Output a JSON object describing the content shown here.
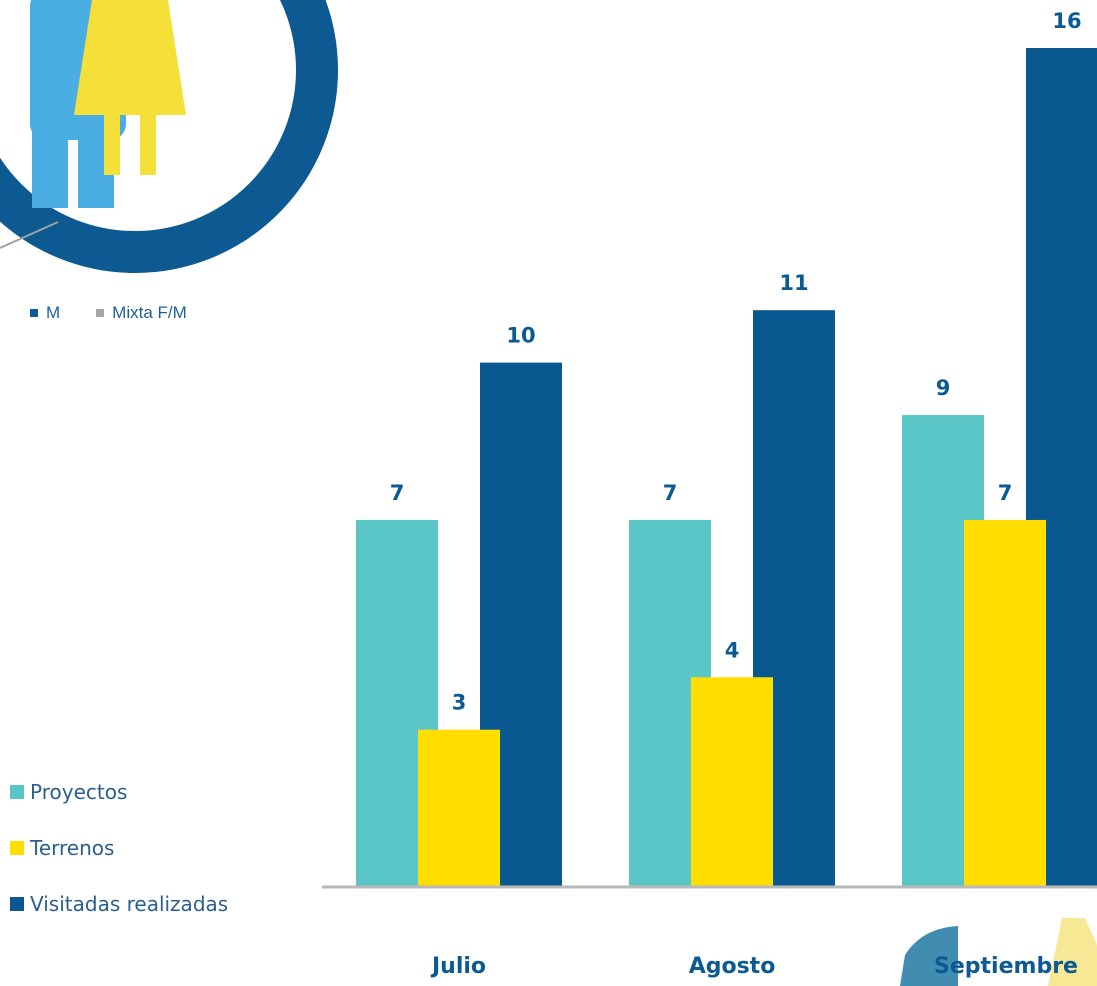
{
  "top_legend": [
    {
      "label": "M",
      "color": "#0c5a91"
    },
    {
      "label": "Mixta F/M",
      "color": "#a6a6a6"
    }
  ],
  "chart_data": {
    "type": "bar",
    "categories": [
      "Julio",
      "Agosto",
      "Septiembre"
    ],
    "series": [
      {
        "name": "Proyectos",
        "values": [
          7,
          7,
          9
        ],
        "color": "#5bc6c7"
      },
      {
        "name": "Terrenos",
        "values": [
          3,
          4,
          7
        ],
        "color": "#ffde00"
      },
      {
        "name": "Visitadas realizadas",
        "values": [
          10,
          11,
          16
        ],
        "color": "#0a5890"
      }
    ],
    "ylim": [
      0,
      16
    ],
    "legend_position": "left",
    "grid": false
  },
  "colors": {
    "ring": "#0c5a91",
    "man_figure": "#4aaee2",
    "woman_figure": "#f5e03a",
    "axis": "#b9b9b9"
  },
  "icons": [
    "people-gender-icon",
    "decorative-figure-icon"
  ]
}
